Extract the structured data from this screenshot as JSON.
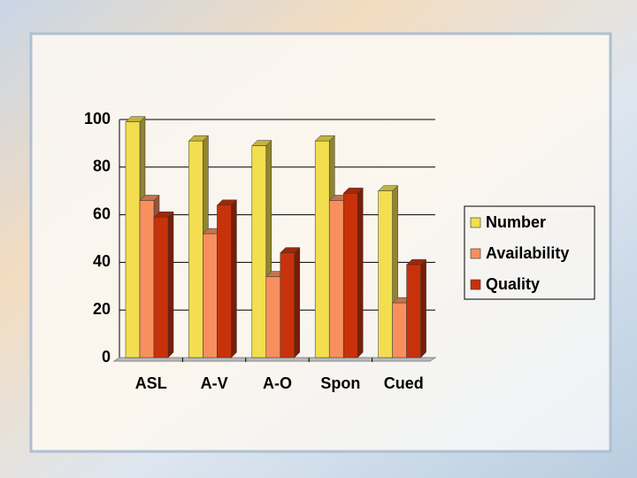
{
  "chart_data": {
    "type": "bar3d",
    "categories": [
      "ASL",
      "A-V",
      "A-O",
      "Spon",
      "Cued"
    ],
    "series": [
      {
        "name": "Number",
        "color": "#f2de4e",
        "values": [
          99,
          91,
          89,
          91,
          70
        ]
      },
      {
        "name": "Availability",
        "color": "#f7905e",
        "values": [
          66,
          52,
          34,
          66,
          23
        ]
      },
      {
        "name": "Quality",
        "color": "#c8320a",
        "values": [
          59,
          64,
          44,
          69,
          39
        ]
      }
    ],
    "ylim": [
      0,
      100
    ],
    "yticks": [
      0,
      20,
      40,
      60,
      80,
      100
    ],
    "grid": true,
    "legend": "right"
  }
}
